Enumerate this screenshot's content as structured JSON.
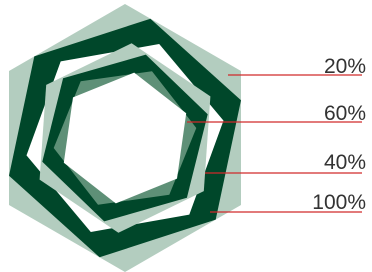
{
  "labels": [
    "20%",
    "60%",
    "40%",
    "100%"
  ]
}
